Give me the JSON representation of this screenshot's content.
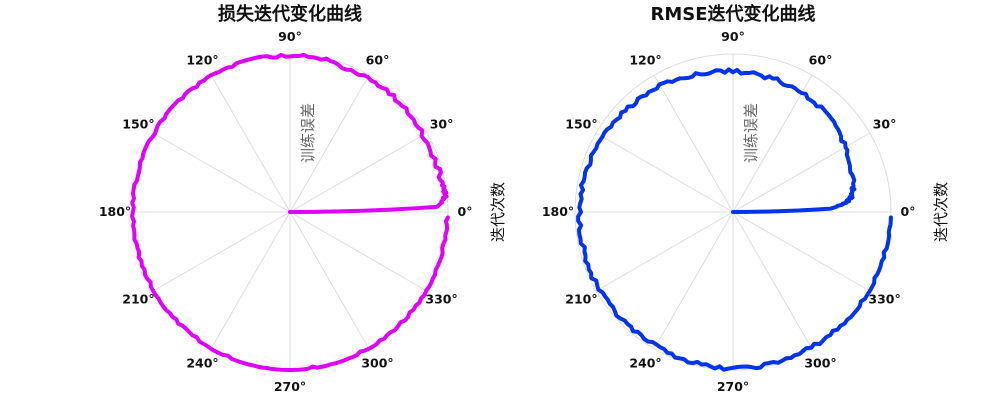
{
  "chart_data": [
    {
      "type": "polar-line",
      "title": "损失迭代变化曲线",
      "radial_label": "训练误差",
      "angular_label": "迭代次数",
      "angle_ticks": [
        "0°",
        "30°",
        "60°",
        "90°",
        "120°",
        "150°",
        "180°",
        "210°",
        "240°",
        "270°",
        "300°",
        "330°"
      ],
      "grid": true,
      "color": "#dd00ff",
      "series": [
        {
          "theta_deg": [
            0,
            2,
            4,
            6,
            8,
            12,
            20,
            30,
            40,
            50,
            60,
            70,
            80,
            90,
            100,
            110,
            120,
            130,
            140,
            150,
            160,
            170,
            180,
            190,
            200,
            210,
            220,
            230,
            240,
            250,
            260,
            270,
            280,
            290,
            300,
            310,
            320,
            330,
            340,
            350,
            358
          ],
          "r": [
            0.0,
            0.93,
            0.97,
            0.99,
            0.99,
            0.98,
            0.97,
            0.97,
            0.98,
            0.98,
            0.98,
            0.98,
            0.99,
            0.99,
            0.99,
            1.0,
            1.0,
            1.0,
            1.0,
            1.0,
            1.0,
            1.0,
            1.0,
            1.0,
            1.0,
            1.0,
            1.0,
            1.0,
            1.0,
            1.0,
            1.0,
            1.0,
            1.0,
            1.0,
            1.0,
            1.0,
            1.0,
            1.0,
            1.0,
            1.0,
            1.0
          ]
        }
      ]
    },
    {
      "type": "polar-line",
      "title": "RMSE迭代变化曲线",
      "radial_label": "训练误差",
      "angular_label": "迭代次数",
      "angle_ticks": [
        "0°",
        "30°",
        "60°",
        "90°",
        "120°",
        "150°",
        "180°",
        "210°",
        "240°",
        "270°",
        "300°",
        "330°"
      ],
      "grid": true,
      "color": "#0033ee",
      "series": [
        {
          "theta_deg": [
            0,
            2,
            4,
            6,
            8,
            12,
            20,
            30,
            40,
            50,
            60,
            70,
            80,
            90,
            100,
            110,
            120,
            130,
            140,
            150,
            160,
            170,
            180,
            190,
            200,
            210,
            220,
            230,
            240,
            250,
            260,
            270,
            280,
            290,
            300,
            310,
            320,
            330,
            340,
            350,
            358
          ],
          "r": [
            0.0,
            0.62,
            0.7,
            0.74,
            0.76,
            0.78,
            0.8,
            0.82,
            0.85,
            0.86,
            0.87,
            0.88,
            0.88,
            0.89,
            0.9,
            0.9,
            0.92,
            0.93,
            0.94,
            0.95,
            0.96,
            0.97,
            0.97,
            0.97,
            0.98,
            0.98,
            0.98,
            0.98,
            0.98,
            0.98,
            0.99,
            0.99,
            0.99,
            0.99,
            0.99,
            0.99,
            1.0,
            1.0,
            1.0,
            1.0,
            1.0
          ]
        }
      ]
    }
  ]
}
